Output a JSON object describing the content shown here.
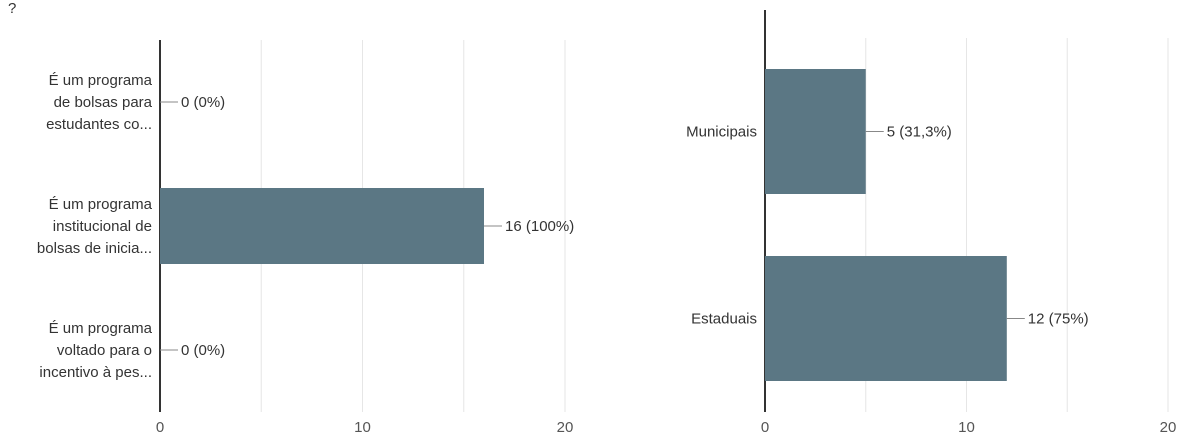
{
  "top_text": "?",
  "colors": {
    "bar": "#5b7784",
    "axis": "#333333",
    "grid": "#e6e6e6",
    "leader": "#888888"
  },
  "chart_data": [
    {
      "type": "bar",
      "orientation": "horizontal",
      "title": "",
      "xlabel": "",
      "ylabel": "",
      "categories": [
        [
          "É um programa",
          "de bolsas para",
          "estudantes co..."
        ],
        [
          "É um programa",
          "institucional de",
          "bolsas de inicia..."
        ],
        [
          "É um programa",
          "voltado para o",
          "incentivo à pes..."
        ]
      ],
      "values": [
        0,
        16,
        0
      ],
      "value_labels": [
        "0 (0%)",
        "16 (100%)",
        "0 (0%)"
      ],
      "xlim": [
        0,
        20
      ],
      "xticks": [
        0,
        10,
        20
      ],
      "xtick_labels": [
        "0",
        "10",
        "20"
      ],
      "grid": true
    },
    {
      "type": "bar",
      "orientation": "horizontal",
      "title": "",
      "xlabel": "",
      "ylabel": "",
      "categories": [
        [
          "Municipais"
        ],
        [
          "Estaduais"
        ]
      ],
      "values": [
        5,
        12
      ],
      "value_labels": [
        "5 (31,3%)",
        "12 (75%)"
      ],
      "xlim": [
        0,
        20
      ],
      "xticks": [
        0,
        10,
        20
      ],
      "xtick_labels": [
        "0",
        "10",
        "20"
      ],
      "grid": true
    }
  ]
}
